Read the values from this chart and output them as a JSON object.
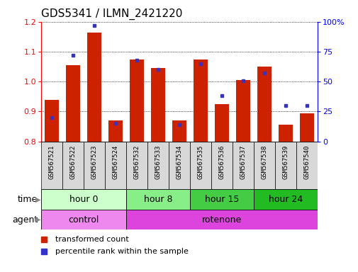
{
  "title": "GDS5341 / ILMN_2421220",
  "samples": [
    "GSM567521",
    "GSM567522",
    "GSM567523",
    "GSM567524",
    "GSM567532",
    "GSM567533",
    "GSM567534",
    "GSM567535",
    "GSM567536",
    "GSM567537",
    "GSM567538",
    "GSM567539",
    "GSM567540"
  ],
  "transformed_count": [
    0.94,
    1.055,
    1.165,
    0.87,
    1.075,
    1.045,
    0.87,
    1.075,
    0.925,
    1.005,
    1.05,
    0.855,
    0.893
  ],
  "percentile_rank": [
    20,
    72,
    97,
    15,
    68,
    60,
    14,
    65,
    38,
    51,
    57,
    30,
    30
  ],
  "ylim_left": [
    0.8,
    1.2
  ],
  "ylim_right": [
    0,
    100
  ],
  "yticks_left": [
    0.8,
    0.9,
    1.0,
    1.1,
    1.2
  ],
  "yticks_right": [
    0,
    25,
    50,
    75,
    100
  ],
  "yticklabels_right": [
    "0",
    "25",
    "50",
    "75",
    "100%"
  ],
  "bar_color": "#cc2200",
  "dot_color": "#3333cc",
  "grid_color": "#000000",
  "bg_color": "#ffffff",
  "time_groups": [
    {
      "label": "hour 0",
      "start": 0,
      "end": 4,
      "color": "#ccffcc"
    },
    {
      "label": "hour 8",
      "start": 4,
      "end": 7,
      "color": "#88ee88"
    },
    {
      "label": "hour 15",
      "start": 7,
      "end": 10,
      "color": "#44cc44"
    },
    {
      "label": "hour 24",
      "start": 10,
      "end": 13,
      "color": "#22bb22"
    }
  ],
  "agent_groups": [
    {
      "label": "control",
      "start": 0,
      "end": 4,
      "color": "#ee88ee"
    },
    {
      "label": "rotenone",
      "start": 4,
      "end": 13,
      "color": "#dd44dd"
    }
  ],
  "legend_items": [
    {
      "label": "transformed count",
      "color": "#cc2200"
    },
    {
      "label": "percentile rank within the sample",
      "color": "#3333cc"
    }
  ],
  "title_fontsize": 11,
  "tick_fontsize": 8,
  "group_fontsize": 9,
  "sample_fontsize": 6.5,
  "legend_fontsize": 8,
  "bar_width": 0.65
}
